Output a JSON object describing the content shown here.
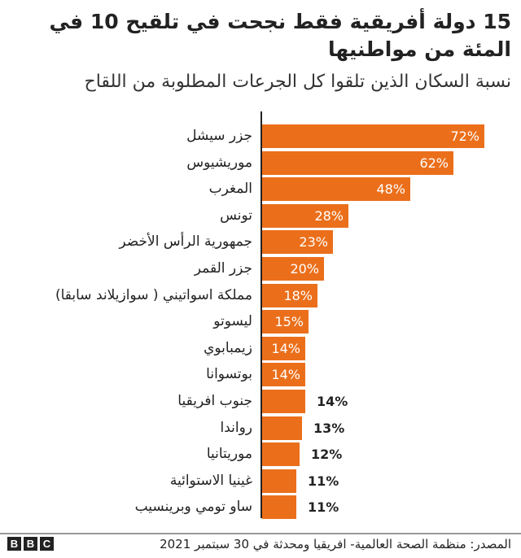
{
  "header": {
    "title": "15 دولة أفريقية فقط نجحت في تلقيح 10 في المئة من مواطنيها",
    "subtitle": "نسبة السكان الذين تلقوا كل الجرعات المطلوبة من اللقاح"
  },
  "footer": {
    "source": "المصدر: منظمة الصحة العالمية- افريقيا ومحدثة في 30 سبتمبر 2021",
    "logo": [
      "B",
      "B",
      "C"
    ]
  },
  "colors": {
    "bar": "#eb6f1b",
    "axis": "#222222"
  },
  "chart_data": {
    "type": "bar",
    "orientation": "horizontal",
    "title": "15 دولة أفريقية فقط نجحت في تلقيح 10 في المئة من مواطنيها",
    "subtitle": "نسبة السكان الذين تلقوا كل الجرعات المطلوبة من اللقاح",
    "xlabel": "",
    "ylabel": "",
    "unit": "%",
    "xlim": [
      0,
      72
    ],
    "grid": false,
    "legend": null,
    "categories": [
      "جزر سيشل",
      "موريشيوس",
      "المغرب",
      "تونس",
      "جمهورية الرأس الأخضر",
      "جزر القمر",
      "مملكة اسواتيني ( سوازيلاند سابقا)",
      "ليسوتو",
      "زيمبابوي",
      "بوتسوانا",
      "جنوب افريقيا",
      "رواندا",
      "موريتانيا",
      "غينيا الاستوائية",
      "ساو تومي وبرينسيب"
    ],
    "values": [
      72,
      62,
      48,
      28,
      23,
      20,
      18,
      15,
      14,
      14,
      14,
      13,
      12,
      11,
      11
    ],
    "value_labels": [
      "72%",
      "62%",
      "48%",
      "28%",
      "23%",
      "20%",
      "18%",
      "15%",
      "14%",
      "14%",
      "14%",
      "13%",
      "12%",
      "11%",
      "11%"
    ],
    "annotations": [],
    "source": "المصدر: منظمة الصحة العالمية- افريقيا ومحدثة في 30 سبتمبر 2021"
  }
}
